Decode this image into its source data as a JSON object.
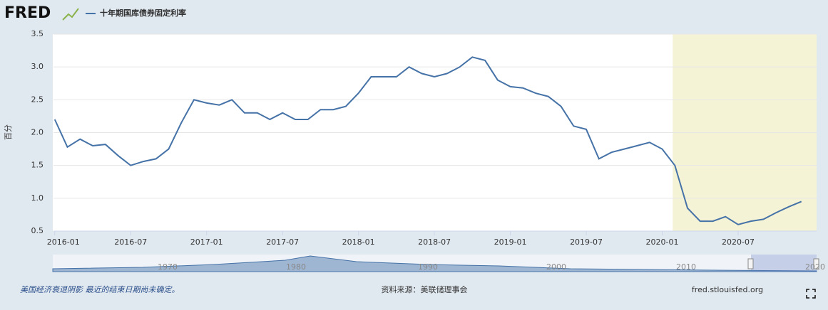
{
  "brand": "FRED",
  "chart_data": {
    "type": "line",
    "ylabel": "百分",
    "categories": [
      "2016-01",
      "2016-02",
      "2016-03",
      "2016-04",
      "2016-05",
      "2016-06",
      "2016-07",
      "2016-08",
      "2016-09",
      "2016-10",
      "2016-11",
      "2016-12",
      "2017-01",
      "2017-02",
      "2017-03",
      "2017-04",
      "2017-05",
      "2017-06",
      "2017-07",
      "2017-08",
      "2017-09",
      "2017-10",
      "2017-11",
      "2017-12",
      "2018-01",
      "2018-02",
      "2018-03",
      "2018-04",
      "2018-05",
      "2018-06",
      "2018-07",
      "2018-08",
      "2018-09",
      "2018-10",
      "2018-11",
      "2018-12",
      "2019-01",
      "2019-02",
      "2019-03",
      "2019-04",
      "2019-05",
      "2019-06",
      "2019-07",
      "2019-08",
      "2019-09",
      "2019-10",
      "2019-11",
      "2019-12",
      "2020-01",
      "2020-02",
      "2020-03",
      "2020-04",
      "2020-05",
      "2020-06",
      "2020-07",
      "2020-08",
      "2020-09",
      "2020-10",
      "2020-11",
      "2020-12"
    ],
    "series": [
      {
        "name": "十年期国库债券固定利率",
        "color": "#4572a7",
        "values": [
          2.2,
          1.78,
          1.9,
          1.8,
          1.82,
          1.65,
          1.5,
          1.56,
          1.6,
          1.75,
          2.15,
          2.5,
          2.45,
          2.42,
          2.5,
          2.3,
          2.3,
          2.2,
          2.3,
          2.2,
          2.2,
          2.35,
          2.35,
          2.4,
          2.6,
          2.85,
          2.85,
          2.85,
          3.0,
          2.9,
          2.85,
          2.9,
          3.0,
          3.15,
          3.1,
          2.8,
          2.7,
          2.68,
          2.6,
          2.55,
          2.4,
          2.1,
          2.05,
          1.6,
          1.7,
          1.75,
          1.8,
          1.85,
          1.75,
          1.5,
          0.85,
          0.65,
          0.65,
          0.72,
          0.6,
          0.65,
          0.68,
          0.78,
          0.87,
          0.95
        ]
      }
    ],
    "ylim": [
      0.5,
      3.5
    ],
    "yticks": [
      0.5,
      {
        "value": 1,
        "label": "1.0"
      },
      1.5,
      {
        "value": 2,
        "label": "2.0"
      },
      2.5,
      {
        "value": 3,
        "label": "3.0"
      },
      3.5
    ],
    "grid": true,
    "recession": {
      "start": "2020-02",
      "end": "2020-12",
      "color": "#f5f3d6"
    },
    "navigator_labels": [
      "1970",
      "1980",
      "1990",
      "2000",
      "2010",
      "2020"
    ]
  },
  "footer": {
    "note": "美国经济衰退阴影 最近的结束日期尚未确定。",
    "source": "资料来源：美联储理事会",
    "site": "fred.stlouisfed.org"
  }
}
